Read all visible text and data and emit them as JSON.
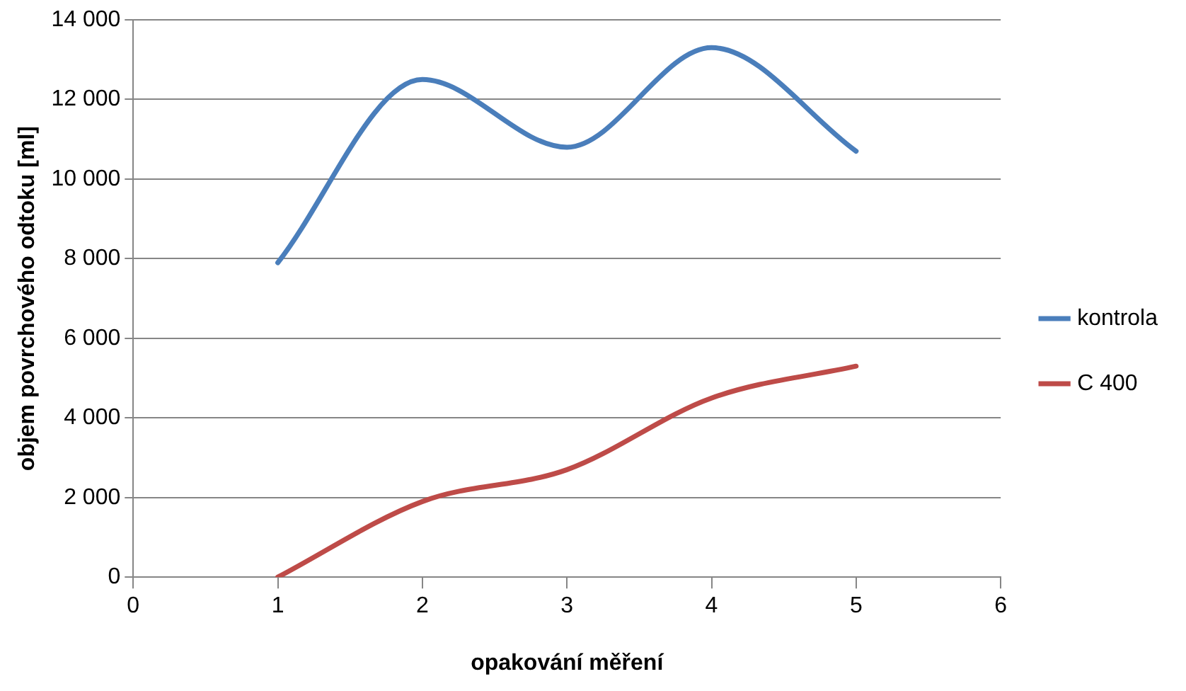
{
  "chart_data": {
    "type": "line",
    "xlabel": "opakování měření",
    "ylabel": "objem povrchového odtoku [ml]",
    "x": [
      1,
      2,
      3,
      4,
      5
    ],
    "series": [
      {
        "name": "kontrola",
        "color": "#4a7ebb",
        "values": [
          7900,
          12500,
          10800,
          13300,
          10700
        ]
      },
      {
        "name": "C 400",
        "color": "#be4b48",
        "values": [
          0,
          1900,
          2700,
          4500,
          5300
        ]
      }
    ],
    "xlim": [
      0,
      6
    ],
    "xticks": [
      0,
      1,
      2,
      3,
      4,
      5,
      6
    ],
    "ylim": [
      0,
      14000
    ],
    "yticks": [
      0,
      {
        "value": 2000,
        "label": "2 000"
      },
      {
        "value": 4000,
        "label": "4 000"
      },
      {
        "value": 6000,
        "label": "6 000"
      },
      {
        "value": 8000,
        "label": "8 000"
      },
      {
        "value": 10000,
        "label": "10 000"
      },
      {
        "value": 12000,
        "label": "12 000"
      },
      {
        "value": 14000,
        "label": "14 000"
      }
    ],
    "grid": "y",
    "legend": "right",
    "marker": "none",
    "line_style": "solid"
  }
}
